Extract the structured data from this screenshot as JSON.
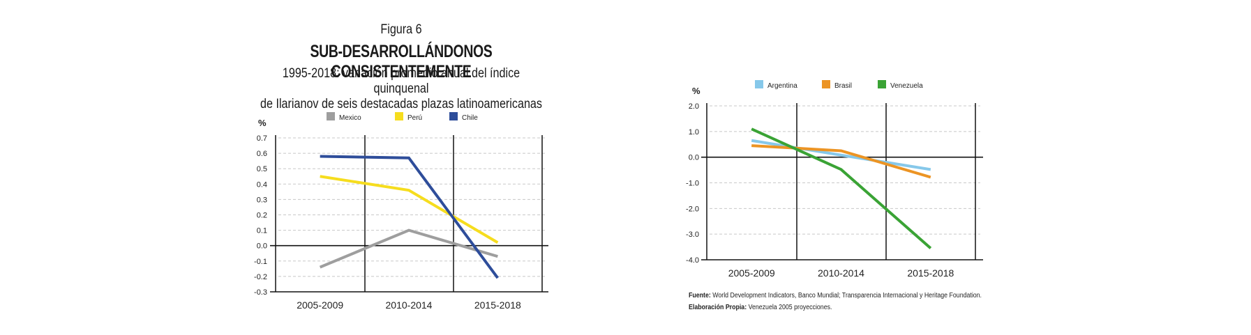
{
  "figure": {
    "label": "Figura 6",
    "title": "SUB-DESARROLLÁNDONOS CONSISTENTEMENTE",
    "subtitle_line1": "1995-2018: variación promedio anual del índice quinquenal",
    "subtitle_line2": "de Ilarianov de seis destacadas plazas latinoamericanas"
  },
  "chart_data": [
    {
      "type": "line",
      "title": "",
      "ylabel": "%",
      "xlabel": "",
      "categories": [
        "2005-2009",
        "2010-2014",
        "2015-2018"
      ],
      "ylim": [
        -0.3,
        0.7
      ],
      "yticks": [
        "0.7",
        "0.6",
        "0.5",
        "0.4",
        "0.3",
        "0.2",
        "0.1",
        "0.0",
        "-0.1",
        "-0.2",
        "-0.3"
      ],
      "ytick_values": [
        0.7,
        0.6,
        0.5,
        0.4,
        0.3,
        0.2,
        0.1,
        0.0,
        -0.1,
        -0.2,
        -0.3
      ],
      "grid": true,
      "legend": "top",
      "series": [
        {
          "name": "Mexico",
          "color": "#9e9e9e",
          "values": [
            -0.14,
            0.1,
            -0.07
          ]
        },
        {
          "name": "Perú",
          "color": "#f6dd1e",
          "values": [
            0.45,
            0.36,
            0.02
          ]
        },
        {
          "name": "Chile",
          "color": "#2e4d9a",
          "values": [
            0.58,
            0.57,
            -0.21
          ]
        }
      ]
    },
    {
      "type": "line",
      "title": "",
      "ylabel": "%",
      "xlabel": "",
      "categories": [
        "2005-2009",
        "2010-2014",
        "2015-2018"
      ],
      "ylim": [
        -4.0,
        2.0
      ],
      "yticks": [
        "2.0",
        "1.0",
        "0.0",
        "-1.0",
        "-2.0",
        "-3.0",
        "-4.0"
      ],
      "ytick_values": [
        2.0,
        1.0,
        0.0,
        -1.0,
        -2.0,
        -3.0,
        -4.0
      ],
      "grid": true,
      "legend": "top",
      "series": [
        {
          "name": "Argentina",
          "color": "#86c8ea",
          "values": [
            0.65,
            0.08,
            -0.48
          ]
        },
        {
          "name": "Brasil",
          "color": "#ec9424",
          "values": [
            0.45,
            0.25,
            -0.78
          ]
        },
        {
          "name": "Venezuela",
          "color": "#3aa335",
          "values": [
            1.1,
            -0.48,
            -3.55
          ]
        }
      ]
    }
  ],
  "notes": {
    "source_label": "Fuente:",
    "source_text": " World Development Indicators, Banco Mundial; Transparencia Internacional y Heritage Foundation.",
    "own_label": "Elaboración Propia:",
    "own_text": " Venezuela 2005 proyecciones."
  }
}
